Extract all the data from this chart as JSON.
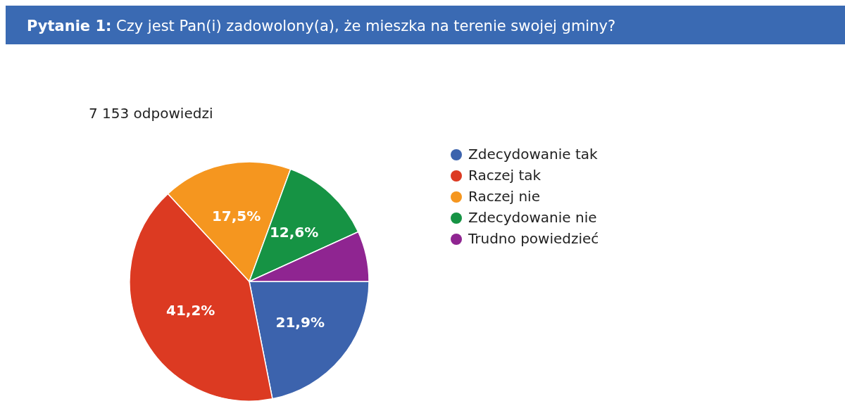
{
  "chart_data": {
    "type": "pie",
    "title": "Pytanie 1: Czy jest Pan(i) zadowolony(a), że mieszka na terenie swojej gminy?",
    "subtitle": "7 153 odpowiedzi",
    "categories": [
      "Zdecydowanie tak",
      "Raczej tak",
      "Raczej nie",
      "Zdecydowanie nie",
      "Trudno powiedzieć"
    ],
    "values": [
      21.9,
      41.2,
      17.5,
      12.6,
      6.8
    ],
    "colors": [
      "#3c63ad",
      "#dc3a22",
      "#f5961f",
      "#169344",
      "#8f2591"
    ],
    "value_labels": [
      "21,9%",
      "41,2%",
      "17,5%",
      "12,6%",
      null
    ],
    "legend": "right"
  }
}
